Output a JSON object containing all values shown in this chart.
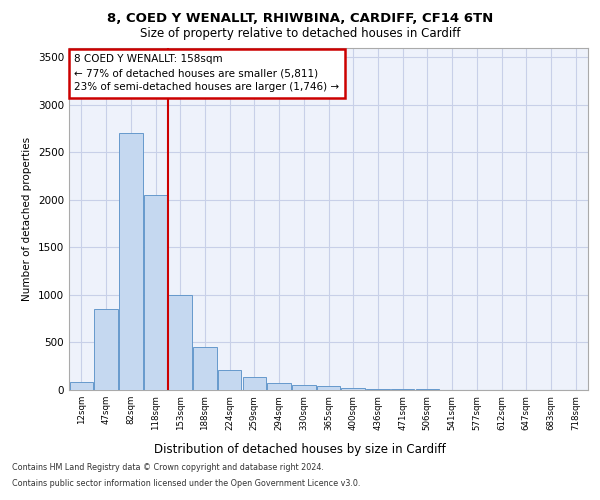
{
  "title1": "8, COED Y WENALLT, RHIWBINA, CARDIFF, CF14 6TN",
  "title2": "Size of property relative to detached houses in Cardiff",
  "xlabel": "Distribution of detached houses by size in Cardiff",
  "ylabel": "Number of detached properties",
  "categories": [
    "12sqm",
    "47sqm",
    "82sqm",
    "118sqm",
    "153sqm",
    "188sqm",
    "224sqm",
    "259sqm",
    "294sqm",
    "330sqm",
    "365sqm",
    "400sqm",
    "436sqm",
    "471sqm",
    "506sqm",
    "541sqm",
    "577sqm",
    "612sqm",
    "647sqm",
    "683sqm",
    "718sqm"
  ],
  "values": [
    80,
    850,
    2700,
    2050,
    1000,
    450,
    210,
    135,
    75,
    55,
    40,
    25,
    15,
    10,
    7,
    4,
    3,
    2,
    1,
    1,
    0
  ],
  "bar_color": "#c5d8f0",
  "bar_edge_color": "#6699cc",
  "vline_color": "#cc0000",
  "annotation_text": "8 COED Y WENALLT: 158sqm\n← 77% of detached houses are smaller (5,811)\n23% of semi-detached houses are larger (1,746) →",
  "annotation_box_color": "#ffffff",
  "annotation_border_color": "#cc0000",
  "ylim": [
    0,
    3600
  ],
  "yticks": [
    0,
    500,
    1000,
    1500,
    2000,
    2500,
    3000,
    3500
  ],
  "footnote1": "Contains HM Land Registry data © Crown copyright and database right 2024.",
  "footnote2": "Contains public sector information licensed under the Open Government Licence v3.0.",
  "bg_color": "#ffffff",
  "plot_bg_color": "#eef2fb",
  "grid_color": "#c8d0e8"
}
